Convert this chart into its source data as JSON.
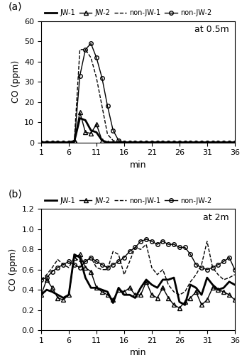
{
  "x": [
    1,
    2,
    3,
    4,
    5,
    6,
    7,
    8,
    9,
    10,
    11,
    12,
    13,
    14,
    15,
    16,
    17,
    18,
    19,
    20,
    21,
    22,
    23,
    24,
    25,
    26,
    27,
    28,
    29,
    30,
    31,
    32,
    33,
    34,
    35,
    36
  ],
  "a_JW1": [
    0,
    0,
    0,
    0,
    0,
    0,
    0.5,
    12,
    11,
    6,
    5,
    1,
    0,
    0,
    0,
    0,
    0,
    0,
    0,
    0,
    0,
    0,
    0,
    0,
    0,
    0,
    0,
    0,
    0,
    0,
    0,
    0,
    0,
    0,
    0,
    0
  ],
  "a_JW2": [
    0,
    0,
    0,
    0,
    0,
    0,
    1,
    15,
    5,
    4.5,
    9,
    1,
    0,
    0,
    0,
    0,
    0,
    0,
    0,
    0,
    0,
    0,
    0,
    0,
    0,
    0,
    0,
    0,
    0,
    0,
    0,
    0,
    0,
    0,
    0,
    0
  ],
  "a_nonJW1": [
    0,
    0,
    0,
    0,
    0,
    0,
    1,
    46,
    46,
    42,
    32,
    18,
    4,
    1,
    0,
    0,
    0,
    0,
    0,
    0,
    0,
    0,
    0,
    0,
    0,
    0,
    0,
    0,
    0,
    0,
    0,
    0,
    0,
    0,
    0,
    0
  ],
  "a_nonJW2": [
    0,
    0,
    0,
    0,
    0,
    0,
    0,
    33,
    46,
    49,
    42,
    32,
    18,
    6,
    1,
    0,
    0,
    0,
    0,
    0,
    0,
    0,
    0,
    0,
    0,
    0,
    0,
    0,
    0,
    0,
    0,
    0,
    0,
    0,
    0,
    0
  ],
  "b_JW1": [
    0.35,
    0.4,
    0.38,
    0.35,
    0.32,
    0.35,
    0.75,
    0.72,
    0.52,
    0.42,
    0.42,
    0.4,
    0.38,
    0.27,
    0.42,
    0.35,
    0.35,
    0.32,
    0.42,
    0.5,
    0.45,
    0.42,
    0.5,
    0.5,
    0.52,
    0.28,
    0.25,
    0.45,
    0.42,
    0.35,
    0.52,
    0.45,
    0.4,
    0.42,
    0.48,
    0.45
  ],
  "b_JW2": [
    0.35,
    0.5,
    0.42,
    0.32,
    0.3,
    0.35,
    0.72,
    0.75,
    0.62,
    0.58,
    0.42,
    0.38,
    0.35,
    0.3,
    0.4,
    0.38,
    0.42,
    0.35,
    0.35,
    0.48,
    0.35,
    0.32,
    0.42,
    0.32,
    0.25,
    0.22,
    0.28,
    0.32,
    0.38,
    0.25,
    0.3,
    0.42,
    0.4,
    0.38,
    0.35,
    0.3
  ],
  "b_nonJW1": [
    0.5,
    0.55,
    0.62,
    0.7,
    0.65,
    0.62,
    0.72,
    0.68,
    0.68,
    0.72,
    0.62,
    0.6,
    0.6,
    0.78,
    0.75,
    0.55,
    0.68,
    0.82,
    0.8,
    0.85,
    0.62,
    0.55,
    0.6,
    0.45,
    0.38,
    0.35,
    0.38,
    0.48,
    0.55,
    0.65,
    0.88,
    0.62,
    0.55,
    0.5,
    0.52,
    0.55
  ],
  "b_nonJW2": [
    0.5,
    0.52,
    0.58,
    0.62,
    0.65,
    0.68,
    0.65,
    0.62,
    0.68,
    0.72,
    0.68,
    0.65,
    0.62,
    0.65,
    0.68,
    0.72,
    0.78,
    0.82,
    0.88,
    0.9,
    0.88,
    0.85,
    0.88,
    0.85,
    0.85,
    0.82,
    0.82,
    0.75,
    0.65,
    0.62,
    0.6,
    0.62,
    0.65,
    0.68,
    0.72,
    0.6
  ],
  "ylabel_a": "CO (ppm)",
  "ylabel_b": "CO (ppm)",
  "xlabel": "min",
  "annot_a": "at 0.5m",
  "annot_b": "at 2m",
  "label_a": "(a)",
  "label_b": "(b)",
  "ylim_a": [
    0,
    60
  ],
  "ylim_b": [
    0,
    1.2
  ],
  "yticks_a": [
    0,
    10,
    20,
    30,
    40,
    50,
    60
  ],
  "yticks_b": [
    0,
    0.2,
    0.4,
    0.6,
    0.8,
    1.0,
    1.2
  ],
  "xticks": [
    1,
    6,
    11,
    16,
    21,
    26,
    31,
    36
  ],
  "color": "#000000",
  "lw_thick": 2.0,
  "lw_thin": 1.0,
  "markersize": 4,
  "fontsize_legend": 7,
  "fontsize_label": 9,
  "fontsize_panel": 10
}
